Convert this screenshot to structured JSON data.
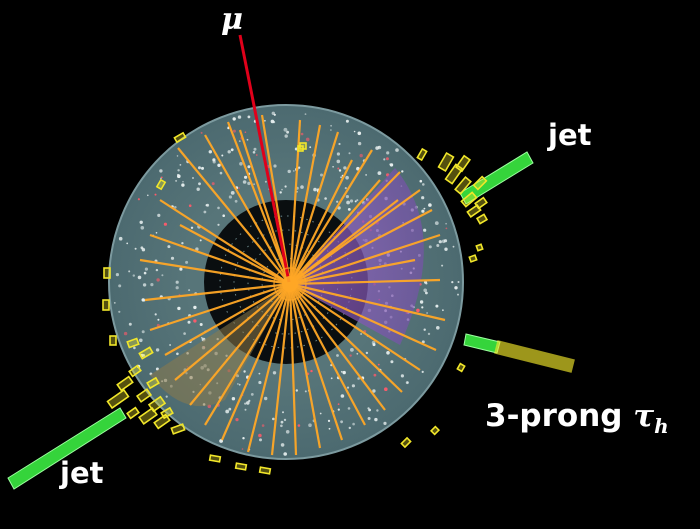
{
  "labels": {
    "muon": "μ",
    "jet_upper": "jet",
    "jet_lower": "jet",
    "tau_prefix": "3-prong ",
    "tau_symbol": "τ",
    "tau_subscript": "h"
  },
  "colors": {
    "background": "#000000",
    "outer_detector": "#5b7a80",
    "inner_detector": "#0b0f10",
    "tracks": "#ffa726",
    "muon_track": "#e0001a",
    "jet_bars": "#35d43b",
    "calorimeter_towers": "#f1e62a",
    "tau_cone": "#8a5bbd"
  }
}
